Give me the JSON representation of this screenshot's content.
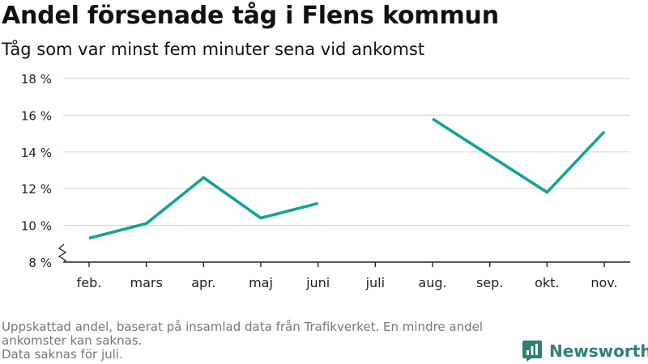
{
  "title": "Andel försenade tåg i Flens kommun",
  "subtitle": "Tåg som var minst fem minuter sena vid ankomst",
  "notes": [
    "Uppskattad andel, baserat på insamlad data från Trafikverket. En mindre andel ankomster kan saknas.",
    "Data saknas för juli."
  ],
  "brand": {
    "name": "Newsworthy",
    "icon": "newsworthy-logo-icon",
    "color": "#2f7f75"
  },
  "colors": {
    "line": "#14a394",
    "grid": "#d9d9d9",
    "axis": "#222222",
    "tick_text": "#222222"
  },
  "chart_data": {
    "type": "line",
    "categories": [
      "feb.",
      "mars",
      "apr.",
      "maj",
      "juni",
      "juli",
      "aug.",
      "sep.",
      "okt.",
      "nov."
    ],
    "series": [
      {
        "values": [
          9.3,
          10.1,
          12.6,
          10.4,
          11.2,
          null,
          15.8,
          13.8,
          11.8,
          15.1
        ]
      }
    ],
    "yticks": [
      8,
      10,
      12,
      14,
      16,
      18
    ],
    "ytick_labels": [
      "8 %",
      "10 %",
      "12 %",
      "14 %",
      "16 %",
      "18 %"
    ],
    "ylim": [
      8,
      18
    ],
    "y_axis_break": true,
    "grid": "horizontal",
    "xlabel": "",
    "ylabel": ""
  }
}
